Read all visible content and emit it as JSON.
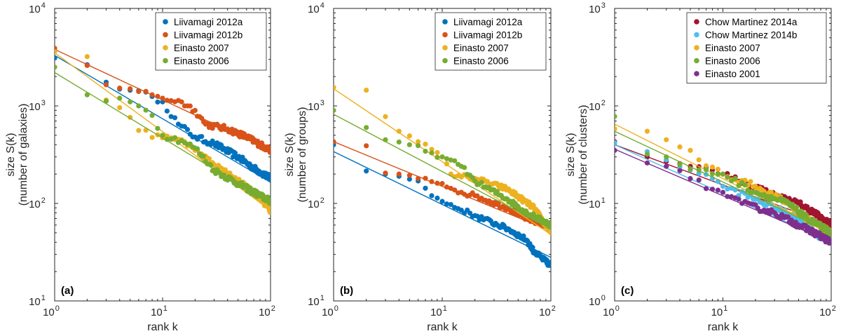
{
  "colors": {
    "blue": "#0072BD",
    "orange": "#D95319",
    "yellow": "#EDB120",
    "green": "#77AC30",
    "maroon": "#A2142F",
    "cyan": "#4DBEEE",
    "purple": "#7E2F8E",
    "axis": "#262626"
  },
  "chart_data": [
    {
      "type": "scatter",
      "panel_label": "(a)",
      "xlabel": "rank k",
      "ylabel": [
        "size S(k)",
        "(number of galaxies)"
      ],
      "xscale": "log",
      "yscale": "log",
      "xlim": [
        1,
        100
      ],
      "ylim": [
        10,
        10000
      ],
      "xticks": [
        {
          "base": "10",
          "exp": "0"
        },
        {
          "base": "10",
          "exp": "1"
        },
        {
          "base": "10",
          "exp": "2"
        }
      ],
      "yticks": [
        {
          "base": "10",
          "exp": "1"
        },
        {
          "base": "10",
          "exp": "2"
        },
        {
          "base": "10",
          "exp": "3"
        },
        {
          "base": "10",
          "exp": "4"
        }
      ],
      "grid": false,
      "legend_position": "top-right",
      "series": [
        {
          "name": "Liivamagi 2012a",
          "color": "blue",
          "anchors": [
            [
              1,
              3100
            ],
            [
              2,
              2650
            ],
            [
              3,
              1750
            ],
            [
              5,
              1450
            ],
            [
              8,
              1250
            ],
            [
              10,
              1100
            ],
            [
              14,
              650
            ],
            [
              20,
              480
            ],
            [
              30,
              410
            ],
            [
              50,
              300
            ],
            [
              70,
              230
            ],
            [
              100,
              180
            ]
          ],
          "fit": [
            [
              1,
              3300
            ],
            [
              100,
              165
            ]
          ],
          "noise": 0.03
        },
        {
          "name": "Liivamagi 2012b",
          "color": "orange",
          "anchors": [
            [
              1,
              3900
            ],
            [
              2,
              2600
            ],
            [
              3,
              1650
            ],
            [
              5,
              1500
            ],
            [
              8,
              1300
            ],
            [
              10,
              1200
            ],
            [
              15,
              1100
            ],
            [
              20,
              900
            ],
            [
              25,
              650
            ],
            [
              40,
              580
            ],
            [
              60,
              480
            ],
            [
              100,
              350
            ]
          ],
          "fit": [
            [
              1,
              3800
            ],
            [
              100,
              350
            ]
          ],
          "noise": 0.03
        },
        {
          "name": "Einasto 2007",
          "color": "yellow",
          "anchors": [
            [
              1,
              3600
            ],
            [
              2,
              3200
            ],
            [
              3,
              1150
            ],
            [
              4,
              960
            ],
            [
              6,
              560
            ],
            [
              10,
              470
            ],
            [
              15,
              450
            ],
            [
              20,
              350
            ],
            [
              30,
              250
            ],
            [
              50,
              170
            ],
            [
              80,
              115
            ],
            [
              100,
              85
            ]
          ],
          "fit": [
            [
              1,
              3500
            ],
            [
              100,
              85
            ]
          ],
          "noise": 0.03
        },
        {
          "name": "Einasto 2006",
          "color": "green",
          "anchors": [
            [
              1,
              2500
            ],
            [
              2,
              1300
            ],
            [
              3,
              1120
            ],
            [
              4,
              1200
            ],
            [
              5,
              1100
            ],
            [
              6,
              1000
            ],
            [
              8,
              800
            ],
            [
              10,
              500
            ],
            [
              15,
              440
            ],
            [
              20,
              370
            ],
            [
              30,
              220
            ],
            [
              50,
              160
            ],
            [
              100,
              105
            ]
          ],
          "fit": [
            [
              1,
              2200
            ],
            [
              100,
              100
            ]
          ],
          "noise": 0.03
        }
      ]
    },
    {
      "type": "scatter",
      "panel_label": "(b)",
      "xlabel": "rank k",
      "ylabel": [
        "size S(k)",
        "(number of groups)"
      ],
      "xscale": "log",
      "yscale": "log",
      "xlim": [
        1,
        100
      ],
      "ylim": [
        10,
        10000
      ],
      "xticks": [
        {
          "base": "10",
          "exp": "0"
        },
        {
          "base": "10",
          "exp": "1"
        },
        {
          "base": "10",
          "exp": "2"
        }
      ],
      "yticks": [
        {
          "base": "10",
          "exp": "1"
        },
        {
          "base": "10",
          "exp": "2"
        },
        {
          "base": "10",
          "exp": "3"
        },
        {
          "base": "10",
          "exp": "4"
        }
      ],
      "grid": false,
      "legend_position": "top-right",
      "series": [
        {
          "name": "Liivamagi 2012a",
          "color": "blue",
          "anchors": [
            [
              1,
              400
            ],
            [
              2,
              215
            ],
            [
              3,
              200
            ],
            [
              4,
              190
            ],
            [
              6,
              170
            ],
            [
              8,
              120
            ],
            [
              10,
              105
            ],
            [
              20,
              75
            ],
            [
              40,
              55
            ],
            [
              60,
              42
            ],
            [
              70,
              32
            ],
            [
              100,
              23
            ]
          ],
          "fit": [
            [
              1,
              340
            ],
            [
              100,
              28
            ]
          ],
          "noise": 0.025
        },
        {
          "name": "Liivamagi 2012b",
          "color": "orange",
          "anchors": [
            [
              1,
              430
            ],
            [
              2,
              390
            ],
            [
              3,
              205
            ],
            [
              4,
              200
            ],
            [
              6,
              180
            ],
            [
              10,
              160
            ],
            [
              15,
              130
            ],
            [
              20,
              120
            ],
            [
              40,
              90
            ],
            [
              60,
              70
            ],
            [
              100,
              58
            ]
          ],
          "fit": [
            [
              1,
              430
            ],
            [
              100,
              52
            ]
          ],
          "noise": 0.025
        },
        {
          "name": "Einasto 2007",
          "color": "yellow",
          "anchors": [
            [
              1,
              1550
            ],
            [
              2,
              1450
            ],
            [
              4,
              550
            ],
            [
              6,
              430
            ],
            [
              10,
              300
            ],
            [
              12,
              200
            ],
            [
              20,
              180
            ],
            [
              40,
              140
            ],
            [
              70,
              90
            ],
            [
              100,
              50
            ]
          ],
          "fit": [
            [
              1,
              1500
            ],
            [
              100,
              48
            ]
          ],
          "noise": 0.025
        },
        {
          "name": "Einasto 2006",
          "color": "green",
          "anchors": [
            [
              1,
              900
            ],
            [
              2,
              600
            ],
            [
              3,
              450
            ],
            [
              5,
              400
            ],
            [
              8,
              330
            ],
            [
              10,
              300
            ],
            [
              15,
              240
            ],
            [
              20,
              170
            ],
            [
              40,
              110
            ],
            [
              60,
              80
            ],
            [
              100,
              60
            ]
          ],
          "fit": [
            [
              1,
              820
            ],
            [
              100,
              55
            ]
          ],
          "noise": 0.025
        }
      ]
    },
    {
      "type": "scatter",
      "panel_label": "(c)",
      "xlabel": "rank k",
      "ylabel": [
        "size S(k)",
        "(number of clusters)"
      ],
      "xscale": "log",
      "yscale": "log",
      "xlim": [
        1,
        100
      ],
      "ylim": [
        1,
        1000
      ],
      "xticks": [
        {
          "base": "10",
          "exp": "0"
        },
        {
          "base": "10",
          "exp": "1"
        },
        {
          "base": "10",
          "exp": "2"
        }
      ],
      "yticks": [
        {
          "base": "10",
          "exp": "0"
        },
        {
          "base": "10",
          "exp": "1"
        },
        {
          "base": "10",
          "exp": "2"
        },
        {
          "base": "10",
          "exp": "3"
        }
      ],
      "grid": false,
      "legend_position": "top-right",
      "series": [
        {
          "name": "Chow Martinez 2014a",
          "color": "maroon",
          "anchors": [
            [
              1,
              43
            ],
            [
              2,
              30
            ],
            [
              3,
              27
            ],
            [
              5,
              24
            ],
            [
              8,
              22
            ],
            [
              10,
              20
            ],
            [
              20,
              15
            ],
            [
              30,
              12
            ],
            [
              50,
              10
            ],
            [
              70,
              8
            ],
            [
              100,
              6
            ]
          ],
          "fit": [
            [
              1,
              40
            ],
            [
              100,
              6
            ]
          ],
          "noise": 0.03
        },
        {
          "name": "Chow Martinez 2014b",
          "color": "cyan",
          "anchors": [
            [
              1,
              42
            ],
            [
              2,
              34
            ],
            [
              3,
              28
            ],
            [
              5,
              22
            ],
            [
              8,
              18
            ],
            [
              10,
              15
            ],
            [
              20,
              11
            ],
            [
              30,
              9
            ],
            [
              50,
              7
            ],
            [
              70,
              5
            ],
            [
              100,
              4
            ]
          ],
          "fit": [
            [
              1,
              40
            ],
            [
              100,
              4
            ]
          ],
          "noise": 0.03
        },
        {
          "name": "Einasto 2007",
          "color": "yellow",
          "anchors": [
            [
              1,
              58
            ],
            [
              2,
              55
            ],
            [
              3,
              45
            ],
            [
              4,
              38
            ],
            [
              5,
              35
            ],
            [
              6,
              28
            ],
            [
              10,
              20
            ],
            [
              20,
              15
            ],
            [
              40,
              10
            ],
            [
              60,
              7
            ],
            [
              100,
              5
            ]
          ],
          "fit": [
            [
              1,
              65
            ],
            [
              100,
              5
            ]
          ],
          "noise": 0.03
        },
        {
          "name": "Einasto 2006",
          "color": "green",
          "anchors": [
            [
              1,
              78
            ],
            [
              2,
              32
            ],
            [
              3,
              30
            ],
            [
              4,
              25
            ],
            [
              6,
              22
            ],
            [
              10,
              20
            ],
            [
              20,
              13
            ],
            [
              40,
              10
            ],
            [
              60,
              7
            ],
            [
              100,
              5
            ]
          ],
          "fit": [
            [
              1,
              55
            ],
            [
              100,
              5
            ]
          ],
          "noise": 0.03
        },
        {
          "name": "Einasto 2001",
          "color": "purple",
          "anchors": [
            [
              1,
              35
            ],
            [
              2,
              26
            ],
            [
              3,
              24
            ],
            [
              5,
              18
            ],
            [
              8,
              14
            ],
            [
              10,
              13
            ],
            [
              15,
              10
            ],
            [
              30,
              8
            ],
            [
              50,
              6
            ],
            [
              70,
              5
            ],
            [
              100,
              4
            ]
          ],
          "fit": [
            [
              1,
              36
            ],
            [
              100,
              4
            ]
          ],
          "noise": 0.03
        }
      ]
    }
  ]
}
